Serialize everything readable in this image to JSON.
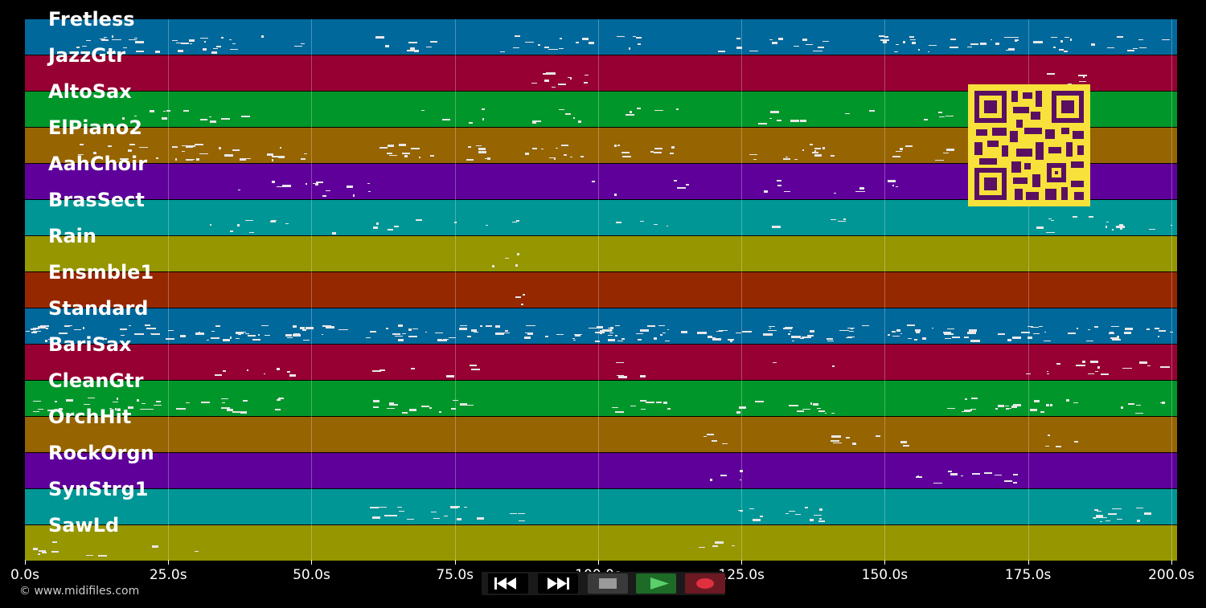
{
  "tracks": [
    {
      "name": "Fretless",
      "color": "#00689b"
    },
    {
      "name": "JazzGtr",
      "color": "#960032"
    },
    {
      "name": "AltoSax",
      "color": "#00962a"
    },
    {
      "name": "ElPiano2",
      "color": "#966400"
    },
    {
      "name": "AahChoir",
      "color": "#5f009b"
    },
    {
      "name": "BrasSect",
      "color": "#009696"
    },
    {
      "name": "Rain",
      "color": "#969600"
    },
    {
      "name": "Ensmble1",
      "color": "#962800"
    },
    {
      "name": "Standard",
      "color": "#00689b"
    },
    {
      "name": "BariSax",
      "color": "#960032"
    },
    {
      "name": "CleanGtr",
      "color": "#00962a"
    },
    {
      "name": "OrchHit",
      "color": "#966400"
    },
    {
      "name": "RockOrgn",
      "color": "#5f009b"
    },
    {
      "name": "SynStrg1",
      "color": "#009696"
    },
    {
      "name": "SawLd",
      "color": "#969600"
    }
  ],
  "axis": {
    "max_seconds": 201,
    "ticks": [
      "0.0s",
      "25.0s",
      "50.0s",
      "75.0s",
      "100.0s",
      "125.0s",
      "150.0s",
      "175.0s",
      "200.0s"
    ]
  },
  "copyright": "© www.midifiles.com",
  "controls": [
    {
      "name": "rewind-icon",
      "color": "#000000"
    },
    {
      "name": "fast-forward-icon",
      "color": "#000000"
    },
    {
      "name": "stop-icon",
      "color": "#3a3a3a"
    },
    {
      "name": "play-icon",
      "color": "#1e6b28"
    },
    {
      "name": "record-icon",
      "color": "#6b1a22"
    }
  ]
}
